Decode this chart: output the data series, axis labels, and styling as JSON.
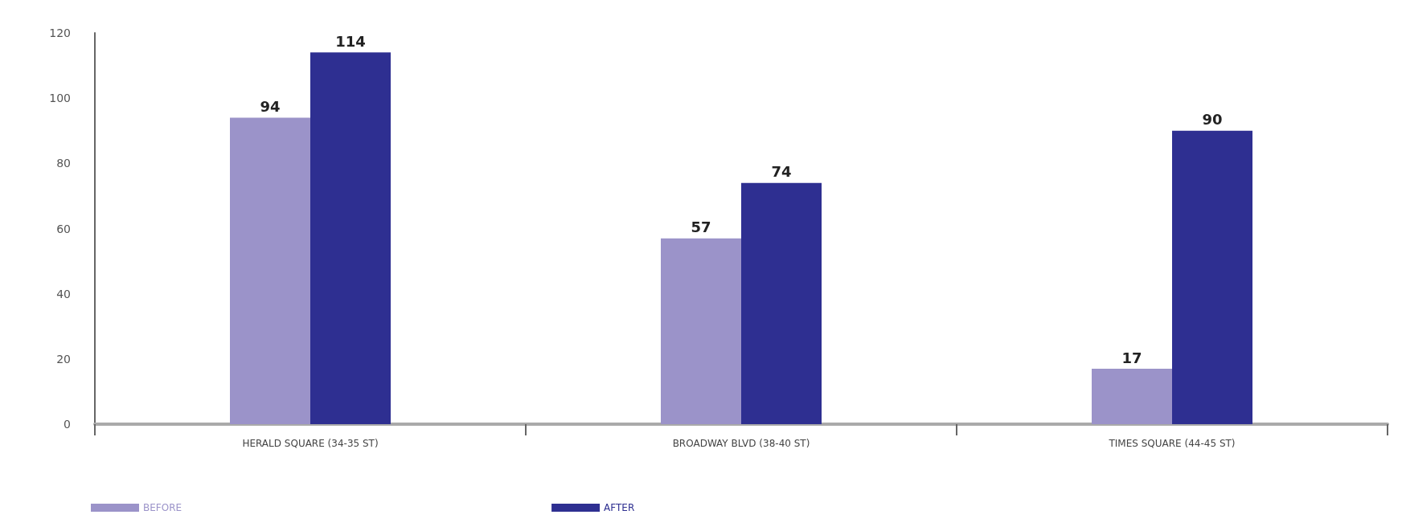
{
  "chart_data": {
    "type": "bar",
    "categories": [
      "HERALD SQUARE (34-35 ST)",
      "BROADWAY BLVD (38-40 ST)",
      "TIMES SQUARE (44-45 ST)"
    ],
    "series": [
      {
        "name": "BEFORE",
        "color": "#9b93c9",
        "values": [
          94,
          57,
          17
        ]
      },
      {
        "name": "AFTER",
        "color": "#2e2f91",
        "values": [
          114,
          74,
          90
        ]
      }
    ],
    "ylim": [
      0,
      120
    ],
    "yticks": [
      0,
      20,
      40,
      60,
      80,
      100,
      120
    ],
    "data_labels": true,
    "legend": "bottom left",
    "grid": false
  }
}
